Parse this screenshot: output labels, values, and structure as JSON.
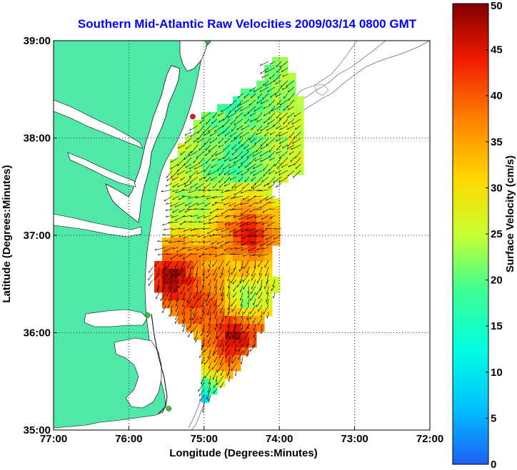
{
  "chart_data": {
    "type": "heatmap",
    "title": "Southern Mid-Atlantic Raw Velocities 2009/03/14 0800 GMT",
    "xlabel": "Longitude (Degrees:Minutes)",
    "ylabel": "Latitude (Degrees:Minutes)",
    "x_ticks": [
      "77:00",
      "76:00",
      "75:00",
      "74:00",
      "73:00",
      "72:00"
    ],
    "y_ticks": [
      "39:00",
      "38:00",
      "37:00",
      "36:00",
      "35:00"
    ],
    "xlim": [
      -77,
      -72
    ],
    "ylim": [
      35,
      39
    ],
    "grid": true,
    "colorbar": {
      "label": "Surface Velocity (cm/s)",
      "min": 0,
      "max": 50,
      "ticks": [
        0,
        5,
        10,
        15,
        20,
        25,
        30,
        35,
        40,
        45,
        50
      ],
      "colormap": "jet"
    },
    "land_color": "#4fe8a8",
    "vector_color": "#000000",
    "stations": [
      {
        "lon": -74.95,
        "lat": 38.99,
        "color": "#2ecc40"
      },
      {
        "lon": -75.15,
        "lat": 38.22,
        "color": "#e01b1b"
      },
      {
        "lon": -75.75,
        "lat": 36.18,
        "color": "#2ecc40"
      },
      {
        "lon": -75.47,
        "lat": 35.22,
        "color": "#2ecc40"
      }
    ]
  }
}
